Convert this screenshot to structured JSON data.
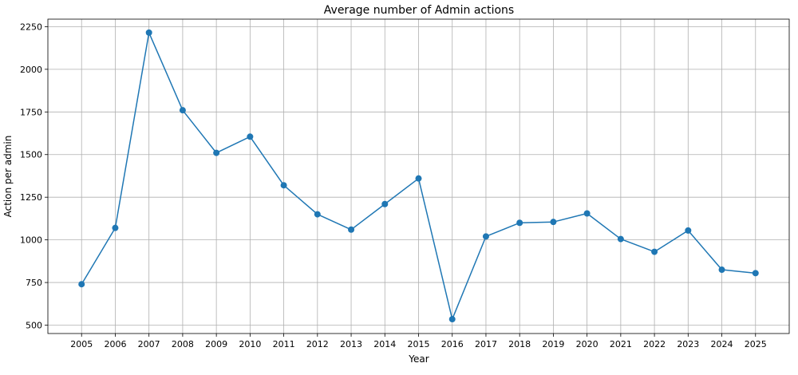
{
  "chart_data": {
    "type": "line",
    "title": "Average number of Admin actions",
    "xlabel": "Year",
    "ylabel": "Action per admin",
    "x": [
      2005,
      2006,
      2007,
      2008,
      2009,
      2010,
      2011,
      2012,
      2013,
      2014,
      2015,
      2016,
      2017,
      2018,
      2019,
      2020,
      2021,
      2022,
      2023,
      2024,
      2025
    ],
    "series": [
      {
        "values": [
          740,
          1070,
          2215,
          1760,
          1510,
          1605,
          1320,
          1150,
          1060,
          1210,
          1360,
          535,
          1020,
          1100,
          1105,
          1155,
          1005,
          930,
          1055,
          825,
          805
        ],
        "color": "#1f77b4",
        "marker": "circle"
      }
    ],
    "xticks": [
      "2005",
      "2006",
      "2007",
      "2008",
      "2009",
      "2010",
      "2011",
      "2012",
      "2013",
      "2014",
      "2015",
      "2016",
      "2017",
      "2018",
      "2019",
      "2020",
      "2021",
      "2022",
      "2023",
      "2024",
      "2025"
    ],
    "yticks": [
      "500",
      "750",
      "1000",
      "1250",
      "1500",
      "1750",
      "2000",
      "2250"
    ],
    "ytick_values": [
      500,
      750,
      1000,
      1250,
      1500,
      1750,
      2000,
      2250
    ],
    "xlim": [
      2004.0,
      2026.0
    ],
    "ylim": [
      451,
      2294
    ],
    "grid": true,
    "legend": "none"
  }
}
